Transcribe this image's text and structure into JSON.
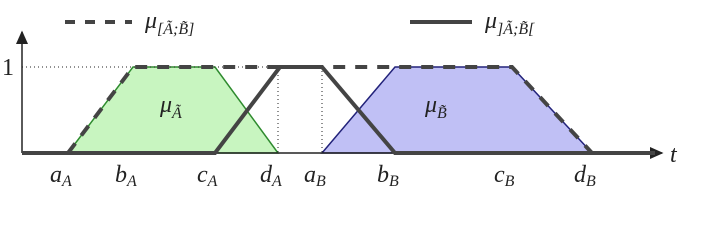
{
  "legend": [
    {
      "symbol": "μ",
      "subscript": "[Ã;B̃]"
    },
    {
      "symbol": "μ",
      "subscript": "]Ã;B̃["
    }
  ],
  "y_label": "1",
  "x_label": "t",
  "regions": [
    {
      "symbol": "μ",
      "subscript": "Ã"
    },
    {
      "symbol": "μ",
      "subscript": "B̃"
    }
  ],
  "points": [
    {
      "main": "a",
      "sub": "A"
    },
    {
      "main": "b",
      "sub": "A"
    },
    {
      "main": "c",
      "sub": "A"
    },
    {
      "main": "d",
      "sub": "A"
    },
    {
      "main": "a",
      "sub": "B"
    },
    {
      "main": "b",
      "sub": "B"
    },
    {
      "main": "c",
      "sub": "B"
    },
    {
      "main": "d",
      "sub": "B"
    }
  ]
}
